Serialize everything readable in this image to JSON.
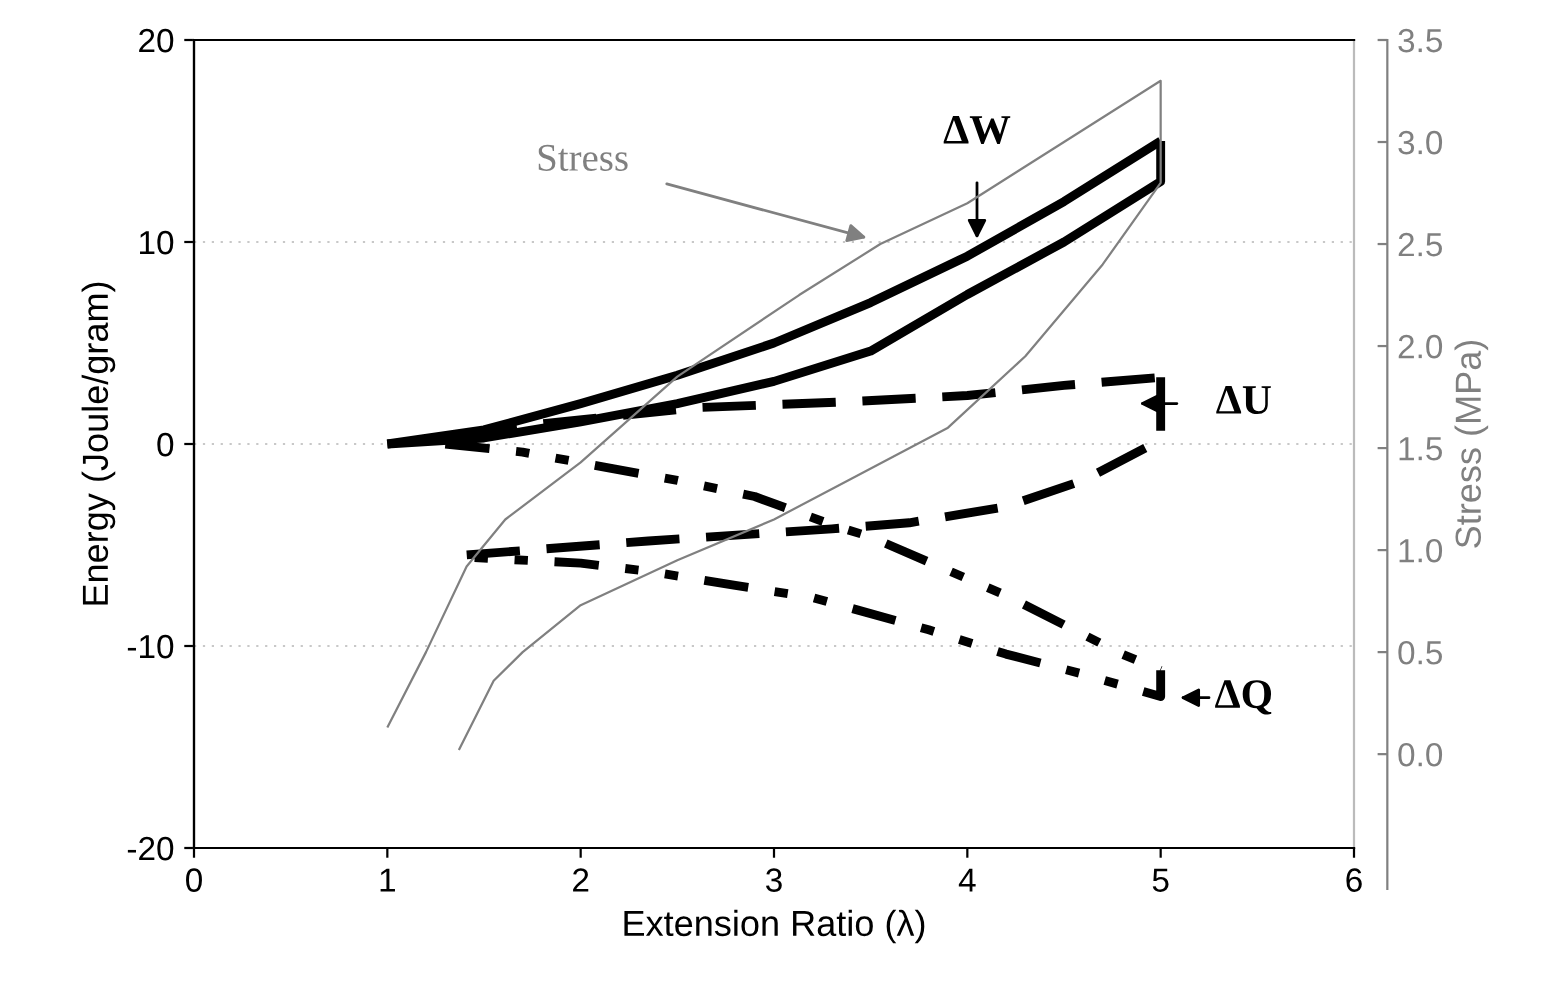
{
  "chart_data": {
    "type": "line",
    "xlabel": "Extension Ratio (λ)",
    "ylabel": "Energy (Joule/gram)",
    "y2label": "Stress (MPa)",
    "xlim": [
      0,
      6
    ],
    "xticks": [
      0,
      1,
      2,
      3,
      4,
      5,
      6
    ],
    "ylim": [
      -20,
      20
    ],
    "yticks": [
      -20,
      -10,
      0,
      10,
      20
    ],
    "y2lim": [
      -0.46,
      3.5
    ],
    "y2ticks": [
      {
        "value": 0,
        "label": "0.0"
      },
      {
        "value": 0.5,
        "label": "0.5"
      },
      {
        "value": 1,
        "label": "1.0"
      },
      {
        "value": 1.5,
        "label": "1.5"
      },
      {
        "value": 2,
        "label": "2.0"
      },
      {
        "value": 2.5,
        "label": "2.5"
      },
      {
        "value": 3,
        "label": "3.0"
      },
      {
        "value": 3.5,
        "label": "3.5"
      }
    ],
    "grid": "y",
    "legend": false,
    "series": [
      {
        "color": "#000000",
        "line_style": "solid",
        "x": [
          1,
          1.5,
          2,
          2.5,
          3,
          3.5,
          4,
          4.5,
          5
        ],
        "values": [
          0,
          0.7,
          2.0,
          3.4,
          5.0,
          7.0,
          9.3,
          12,
          15
        ]
      },
      {
        "color": "#000000",
        "line_style": "solid",
        "x": [
          5,
          5,
          4.5,
          4,
          3.5,
          3,
          2.5,
          2,
          1.5,
          1
        ],
        "values": [
          15,
          13,
          10,
          7.4,
          4.6,
          3.1,
          2.0,
          1.1,
          0.3,
          0
        ]
      },
      {
        "color": "#000000",
        "line_style": "dashed",
        "x": [
          1.4,
          1.8,
          2.2,
          2.6,
          3.4,
          4,
          4.5,
          5
        ],
        "values": [
          0.3,
          1.0,
          1.4,
          1.8,
          2.1,
          2.4,
          2.9,
          3.3
        ]
      },
      {
        "color": "#000000",
        "line_style": "dashed",
        "x": [
          5,
          5,
          4.6,
          4.2,
          3.7,
          3.3,
          2.35,
          1.4
        ],
        "values": [
          3.3,
          0.2,
          -1.8,
          -3.1,
          -3.9,
          -4.2,
          -4.8,
          -5.5
        ]
      },
      {
        "color": "#000000",
        "line_style": "dashdot",
        "x": [
          1.3,
          1.7,
          2.5,
          2.9,
          3.3,
          3.5,
          4.2,
          4.8,
          5
        ],
        "values": [
          0,
          -0.4,
          -1.8,
          -2.6,
          -4.0,
          -4.6,
          -7.5,
          -10.4,
          -11.2
        ]
      },
      {
        "color": "#000000",
        "line_style": "dashdot",
        "x": [
          5,
          5,
          4.6,
          4.2,
          3.8,
          3.2,
          2.8,
          2.35,
          2.0,
          1.4
        ],
        "values": [
          -11.2,
          -12.5,
          -11.4,
          -10.4,
          -9.2,
          -7.6,
          -7.0,
          -6.3,
          -5.9,
          -5.6
        ]
      },
      {
        "color": "#808080",
        "line_style": "solid",
        "axis": "y2",
        "x": [
          1.0,
          1.2,
          1.41,
          1.61,
          2.0,
          2.5,
          3.13,
          3.55,
          4.0,
          4.5,
          5,
          5,
          4.7,
          4.3,
          3.9,
          3.4,
          3.0,
          2.5,
          2.0,
          1.7,
          1.55,
          1.37
        ],
        "values": [
          0.13,
          0.5,
          0.92,
          1.15,
          1.43,
          1.85,
          2.25,
          2.5,
          2.7,
          3.0,
          3.3,
          2.8,
          2.4,
          1.95,
          1.6,
          1.35,
          1.15,
          0.95,
          0.73,
          0.5,
          0.36,
          0.02
        ]
      }
    ],
    "annotations": [
      {
        "text": "ΔW",
        "x": 4.05,
        "y": 9.6
      },
      "ΔU",
      "ΔQ",
      "Stress"
    ]
  }
}
